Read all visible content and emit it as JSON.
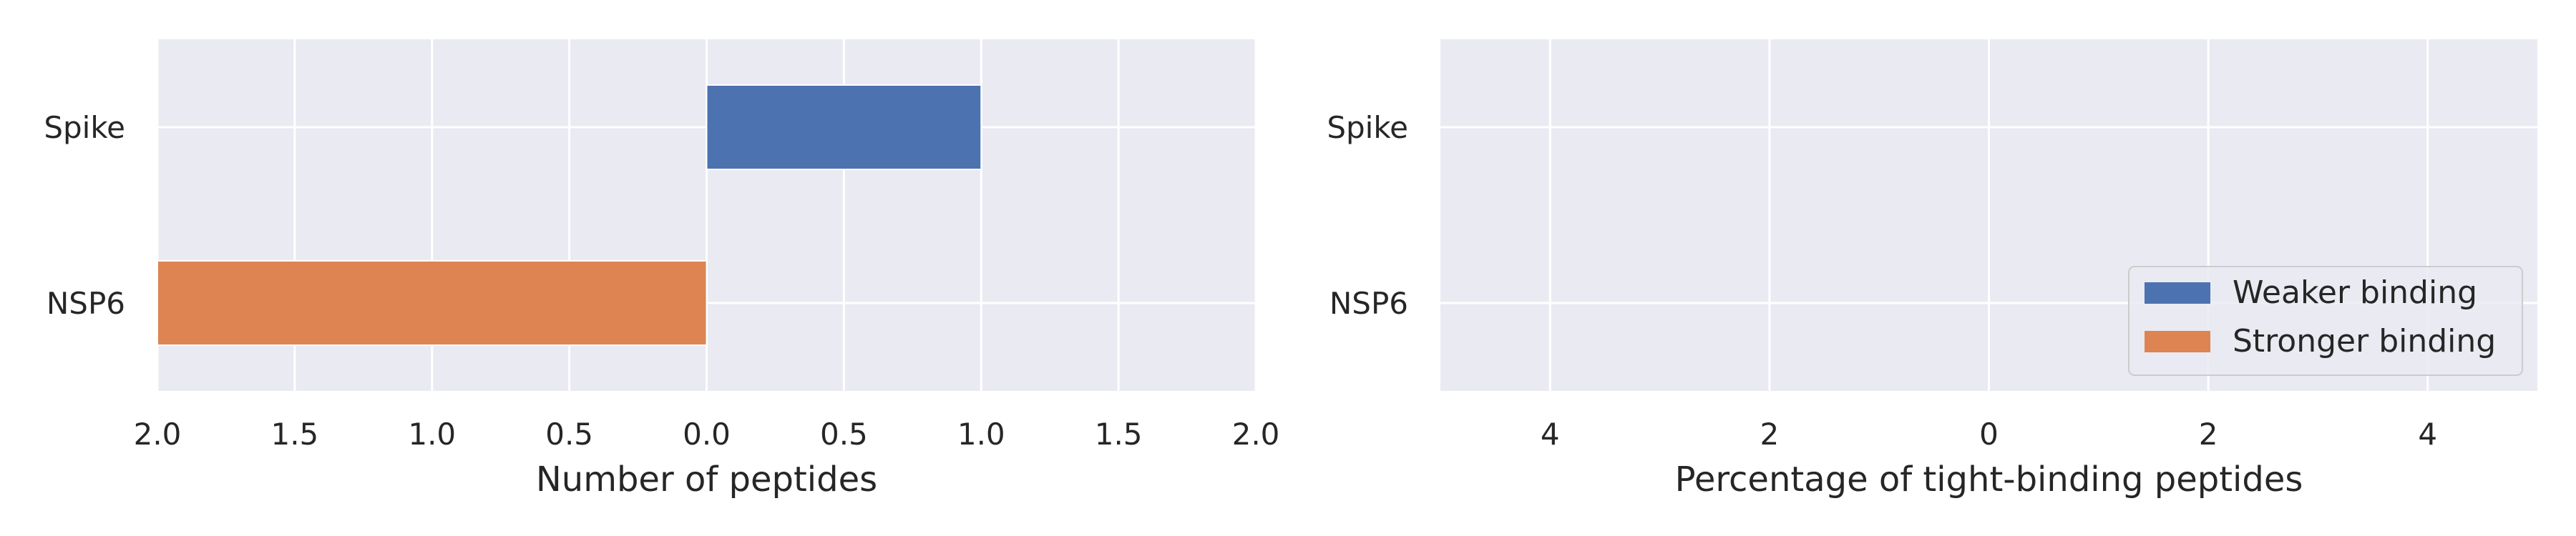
{
  "chart_data": [
    {
      "type": "bar",
      "orientation": "horizontal",
      "categories": [
        "Spike",
        "NSP6"
      ],
      "series": [
        {
          "name": "Weaker binding",
          "values": [
            1,
            0
          ]
        },
        {
          "name": "Stronger binding",
          "values": [
            0,
            -2
          ]
        }
      ],
      "xlabel": "Number of peptides",
      "xlim": [
        -2,
        2
      ],
      "xticks": [
        -2,
        -1.5,
        -1,
        -0.5,
        0,
        0.5,
        1,
        1.5,
        2
      ],
      "xtick_labels": [
        "2.0",
        "1.5",
        "1.0",
        "0.5",
        "0.0",
        "0.5",
        "1.0",
        "1.5",
        "2.0"
      ],
      "grid": true
    },
    {
      "type": "bar",
      "orientation": "horizontal",
      "categories": [
        "Spike",
        "NSP6"
      ],
      "series": [
        {
          "name": "Weaker binding",
          "values": [
            0,
            0
          ]
        },
        {
          "name": "Stronger binding",
          "values": [
            0,
            0
          ]
        }
      ],
      "xlabel": "Percentage of tight-binding peptides",
      "xlim": [
        -5,
        5
      ],
      "xticks": [
        -4,
        -2,
        0,
        2,
        4
      ],
      "xtick_labels": [
        "4",
        "2",
        "0",
        "2",
        "4"
      ],
      "grid": true,
      "legend": {
        "position": "lower-right",
        "entries": [
          "Weaker binding",
          "Stronger binding"
        ]
      }
    }
  ],
  "colors": {
    "background": "#EAEAF2",
    "grid": "#FFFFFF",
    "weaker": "#4C72B0",
    "stronger": "#DD8452",
    "text": "#262626"
  }
}
